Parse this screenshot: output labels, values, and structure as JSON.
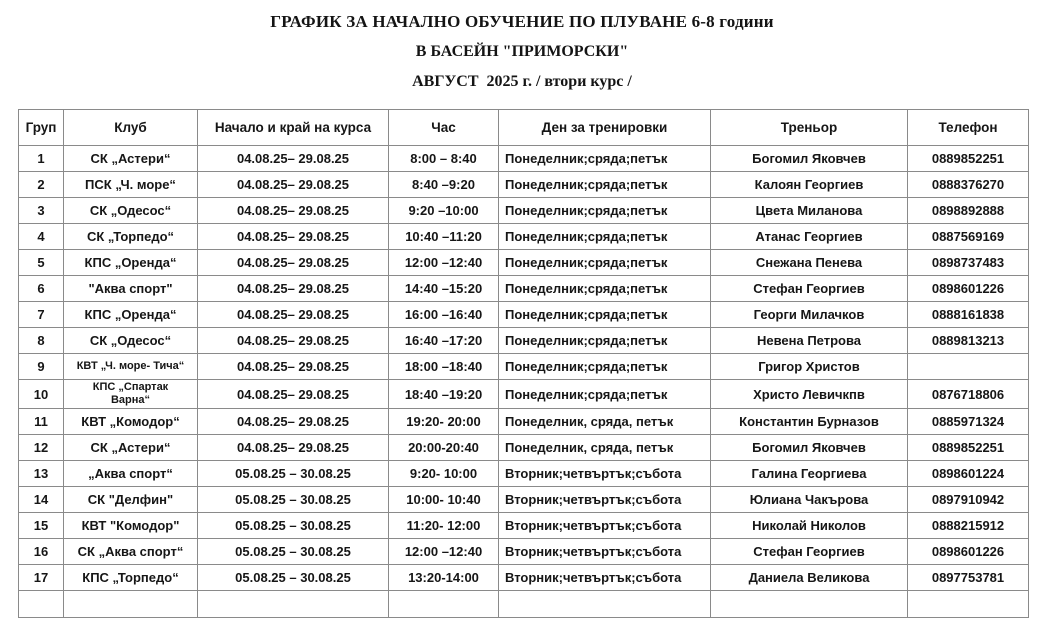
{
  "title": {
    "line1": "ГРАФИК ЗА НАЧАЛНО ОБУЧЕНИЕ ПО ПЛУВАНЕ 6-8 години",
    "line2": "В БАСЕЙН \"ПРИМОРСКИ\"",
    "line3": "АВГУСТ  2025 г. / втори курс /"
  },
  "colors": {
    "text": "#161616",
    "border": "#8a8a8a",
    "background": "#ffffff"
  },
  "table": {
    "headers": [
      "Груп",
      "Клуб",
      "Начало и край на курса",
      "Час",
      "Ден за тренировки",
      "Треньор",
      "Телефон"
    ],
    "rows": [
      [
        "1",
        "СК „Астери“",
        "04.08.25– 29.08.25",
        "8:00 – 8:40",
        "Понеделник;сряда;петък",
        "Богомил Яковчев",
        "0889852251"
      ],
      [
        "2",
        "ПСК „Ч. море“",
        "04.08.25– 29.08.25",
        "8:40 –9:20",
        "Понеделник;сряда;петък",
        "Калоян Георгиев",
        "0888376270"
      ],
      [
        "3",
        "СК „Одесос“",
        "04.08.25– 29.08.25",
        "9:20 –10:00",
        "Понеделник;сряда;петък",
        "Цвета Миланова",
        "0898892888"
      ],
      [
        "4",
        "СК „Торпедо“",
        "04.08.25– 29.08.25",
        "10:40 –11:20",
        "Понеделник;сряда;петък",
        "Атанас Георгиев",
        "0887569169"
      ],
      [
        "5",
        "КПС „Оренда“",
        "04.08.25– 29.08.25",
        "12:00 –12:40",
        "Понеделник;сряда;петък",
        "Снежана Пенева",
        "0898737483"
      ],
      [
        "6",
        "\"Аква спорт\"",
        "04.08.25– 29.08.25",
        "14:40 –15:20",
        "Понеделник;сряда;петък",
        "Стефан Георгиев",
        "0898601226"
      ],
      [
        "7",
        "КПС „Оренда“",
        "04.08.25– 29.08.25",
        "16:00 –16:40",
        "Понеделник;сряда;петък",
        "Георги Милачков",
        "0888161838"
      ],
      [
        "8",
        "СК „Одесос“",
        "04.08.25– 29.08.25",
        "16:40 –17:20",
        "Понеделник;сряда;петък",
        "Невена Петрова",
        "0889813213"
      ],
      [
        "9",
        "КВТ „Ч. море- Тича“",
        "04.08.25– 29.08.25",
        "18:00 –18:40",
        "Понеделник;сряда;петък",
        "Григор Христов",
        ""
      ],
      [
        "10",
        "КПС „Спартак\nВарна“",
        "04.08.25– 29.08.25",
        "18:40 –19:20",
        "Понеделник;сряда;петък",
        "Христо Левичкпв",
        "0876718806"
      ],
      [
        "11",
        "КВТ „Комодор“",
        "04.08.25– 29.08.25",
        "19:20- 20:00",
        "Понеделник, сряда, петък",
        "Константин Бурназов",
        "0885971324"
      ],
      [
        "12",
        "СК „Астери“",
        "04.08.25– 29.08.25",
        "20:00-20:40",
        "Понеделник, сряда, петък",
        "Богомил Яковчев",
        "0889852251"
      ],
      [
        "13",
        "„Аква спорт“",
        "05.08.25 – 30.08.25",
        "9:20- 10:00",
        "Вторник;четвъртък;събота",
        "Галина Георгиева",
        "0898601224"
      ],
      [
        "14",
        "СК \"Делфин\"",
        "05.08.25 – 30.08.25",
        "10:00- 10:40",
        "Вторник;четвъртък;събота",
        "Юлиана Чакърова",
        "0897910942"
      ],
      [
        "15",
        "КВТ \"Комодор\"",
        "05.08.25 – 30.08.25",
        "11:20- 12:00",
        "Вторник;четвъртък;събота",
        "Николай Николов",
        "0888215912"
      ],
      [
        "16",
        "СК „Аква спорт“",
        "05.08.25 – 30.08.25",
        "12:00 –12:40",
        "Вторник;четвъртък;събота",
        "Стефан Георгиев",
        "0898601226"
      ],
      [
        "17",
        "КПС „Торпедо“",
        "05.08.25 – 30.08.25",
        "13:20-14:00",
        "Вторник;четвъртък;събота",
        "Даниела Великова",
        "0897753781"
      ]
    ]
  }
}
